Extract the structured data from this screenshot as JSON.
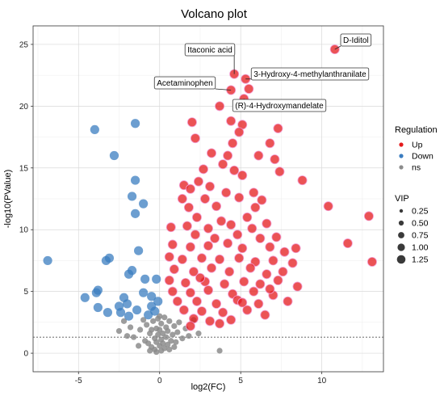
{
  "chart_data": {
    "type": "scatter",
    "title": "Volcano plot",
    "xlabel": "log2(FC)",
    "ylabel": "-log10(PValue)",
    "xlim": [
      -7.8,
      13.8
    ],
    "ylim": [
      -1.5,
      26.5
    ],
    "x_ticks": [
      -5,
      0,
      5,
      10
    ],
    "y_ticks": [
      0,
      5,
      10,
      15,
      20,
      25
    ],
    "grid": true,
    "threshold_line_y": 1.3,
    "legend_placement": "right",
    "colors": {
      "Up": "#e41a1c",
      "Down": "#3b7dc0",
      "ns": "#8c8c8c"
    },
    "regulation_legend": {
      "title": "Regulation",
      "entries": [
        "Up",
        "Down",
        "ns"
      ]
    },
    "vip_legend": {
      "title": "VIP",
      "entries": [
        "0.25",
        "0.50",
        "0.75",
        "1.00",
        "1.25"
      ]
    },
    "series": [
      {
        "name": "Up",
        "points": [
          [
            10.8,
            24.6
          ],
          [
            4.6,
            22.6
          ],
          [
            5.3,
            22.2
          ],
          [
            5.5,
            21.4
          ],
          [
            4.4,
            21.3
          ],
          [
            5.2,
            20.6
          ],
          [
            3.7,
            20.0
          ],
          [
            2.0,
            18.7
          ],
          [
            4.4,
            18.8
          ],
          [
            5.1,
            18.5
          ],
          [
            7.3,
            18.2
          ],
          [
            2.2,
            17.4
          ],
          [
            4.5,
            17.0
          ],
          [
            4.9,
            17.9
          ],
          [
            6.8,
            17.0
          ],
          [
            3.2,
            16.2
          ],
          [
            4.2,
            16.0
          ],
          [
            6.1,
            16.0
          ],
          [
            7.1,
            15.7
          ],
          [
            3.9,
            15.3
          ],
          [
            2.7,
            14.9
          ],
          [
            4.6,
            14.8
          ],
          [
            7.4,
            14.7
          ],
          [
            5.1,
            14.4
          ],
          [
            2.4,
            13.9
          ],
          [
            3.1,
            13.5
          ],
          [
            1.5,
            13.6
          ],
          [
            1.9,
            13.3
          ],
          [
            5.8,
            13.0
          ],
          [
            4.1,
            13.0
          ],
          [
            8.8,
            14.0
          ],
          [
            1.4,
            12.5
          ],
          [
            2.8,
            12.5
          ],
          [
            4.9,
            12.6
          ],
          [
            6.3,
            12.4
          ],
          [
            1.8,
            11.8
          ],
          [
            3.5,
            11.9
          ],
          [
            2.3,
            11.0
          ],
          [
            5.4,
            11.0
          ],
          [
            10.4,
            11.9
          ],
          [
            12.9,
            11.1
          ],
          [
            0.7,
            10.2
          ],
          [
            1.7,
            10.3
          ],
          [
            3.0,
            10.1
          ],
          [
            4.4,
            10.4
          ],
          [
            5.7,
            10.1
          ],
          [
            6.6,
            10.5
          ],
          [
            2.2,
            9.6
          ],
          [
            3.4,
            9.3
          ],
          [
            4.8,
            9.6
          ],
          [
            6.2,
            9.3
          ],
          [
            7.2,
            9.4
          ],
          [
            11.6,
            8.9
          ],
          [
            0.8,
            8.8
          ],
          [
            1.9,
            8.6
          ],
          [
            3.0,
            8.7
          ],
          [
            4.2,
            8.9
          ],
          [
            5.1,
            8.5
          ],
          [
            6.8,
            8.6
          ],
          [
            7.7,
            8.2
          ],
          [
            8.4,
            8.5
          ],
          [
            0.6,
            7.8
          ],
          [
            1.4,
            7.6
          ],
          [
            2.6,
            7.7
          ],
          [
            3.7,
            7.6
          ],
          [
            4.9,
            7.7
          ],
          [
            5.9,
            7.4
          ],
          [
            7.0,
            7.5
          ],
          [
            8.2,
            7.3
          ],
          [
            13.1,
            7.4
          ],
          [
            0.9,
            6.8
          ],
          [
            2.1,
            6.6
          ],
          [
            3.2,
            6.9
          ],
          [
            4.3,
            6.6
          ],
          [
            5.6,
            6.9
          ],
          [
            6.6,
            6.4
          ],
          [
            7.6,
            6.6
          ],
          [
            0.6,
            5.9
          ],
          [
            1.6,
            5.7
          ],
          [
            2.8,
            5.8
          ],
          [
            4.0,
            5.6
          ],
          [
            5.2,
            5.8
          ],
          [
            6.2,
            5.6
          ],
          [
            7.3,
            5.9
          ],
          [
            8.5,
            5.4
          ],
          [
            0.8,
            5.0
          ],
          [
            1.9,
            4.9
          ],
          [
            3.0,
            5.1
          ],
          [
            4.5,
            4.8
          ],
          [
            5.8,
            5.0
          ],
          [
            7.0,
            4.7
          ],
          [
            1.1,
            4.2
          ],
          [
            2.3,
            4.2
          ],
          [
            3.5,
            4.0
          ],
          [
            4.8,
            4.3
          ],
          [
            6.1,
            4.0
          ],
          [
            7.9,
            4.2
          ],
          [
            1.5,
            3.5
          ],
          [
            2.6,
            3.4
          ],
          [
            3.9,
            3.3
          ],
          [
            5.4,
            3.5
          ],
          [
            6.5,
            3.1
          ],
          [
            2.1,
            2.8
          ],
          [
            3.1,
            2.6
          ],
          [
            4.4,
            2.7
          ],
          [
            1.9,
            2.2
          ],
          [
            3.7,
            2.4
          ],
          [
            5.1,
            4.1
          ],
          [
            6.8,
            5.2
          ],
          [
            2.5,
            6.1
          ],
          [
            3.8,
            10.7
          ],
          [
            5.9,
            11.8
          ]
        ]
      },
      {
        "name": "Down",
        "points": [
          [
            -4.0,
            18.1
          ],
          [
            -1.5,
            18.6
          ],
          [
            -2.8,
            16.0
          ],
          [
            -1.5,
            14.0
          ],
          [
            -1.7,
            12.7
          ],
          [
            -1.0,
            12.1
          ],
          [
            -1.5,
            11.3
          ],
          [
            -6.9,
            7.5
          ],
          [
            -3.3,
            7.5
          ],
          [
            -3.1,
            7.7
          ],
          [
            -1.3,
            8.3
          ],
          [
            -1.7,
            6.7
          ],
          [
            -1.9,
            6.4
          ],
          [
            -0.9,
            6.0
          ],
          [
            -0.2,
            6.0
          ],
          [
            -3.8,
            5.1
          ],
          [
            -3.9,
            4.9
          ],
          [
            -2.2,
            4.5
          ],
          [
            -1.0,
            4.9
          ],
          [
            -0.5,
            4.6
          ],
          [
            -4.6,
            4.5
          ],
          [
            -3.8,
            3.7
          ],
          [
            -2.5,
            3.8
          ],
          [
            -2.0,
            4.0
          ],
          [
            -0.1,
            4.2
          ],
          [
            -1.4,
            3.5
          ],
          [
            -2.4,
            3.3
          ],
          [
            -3.2,
            3.3
          ],
          [
            -0.5,
            3.8
          ],
          [
            -0.3,
            3.4
          ],
          [
            -1.9,
            3.0
          ],
          [
            -0.7,
            3.1
          ]
        ]
      },
      {
        "name": "ns",
        "points": [
          [
            -2.5,
            1.8
          ],
          [
            -2.0,
            1.4
          ],
          [
            -1.6,
            1.3
          ],
          [
            -1.2,
            1.9
          ],
          [
            -0.9,
            1.0
          ],
          [
            -0.8,
            2.3
          ],
          [
            -0.7,
            0.8
          ],
          [
            -0.6,
            1.6
          ],
          [
            -0.5,
            0.5
          ],
          [
            -0.4,
            2.6
          ],
          [
            -0.3,
            0.3
          ],
          [
            -0.3,
            1.2
          ],
          [
            -0.2,
            2.0
          ],
          [
            -0.2,
            0.9
          ],
          [
            -0.1,
            1.5
          ],
          [
            -0.1,
            2.8
          ],
          [
            0.0,
            0.6
          ],
          [
            0.0,
            1.9
          ],
          [
            0.1,
            0.2
          ],
          [
            0.1,
            1.1
          ],
          [
            0.1,
            2.4
          ],
          [
            0.2,
            0.8
          ],
          [
            0.2,
            1.6
          ],
          [
            0.3,
            2.9
          ],
          [
            0.3,
            0.4
          ],
          [
            0.4,
            1.3
          ],
          [
            0.4,
            2.1
          ],
          [
            0.5,
            0.7
          ],
          [
            0.5,
            1.8
          ],
          [
            0.6,
            2.6
          ],
          [
            0.7,
            1.0
          ],
          [
            0.8,
            1.5
          ],
          [
            0.9,
            2.2
          ],
          [
            1.0,
            0.9
          ],
          [
            1.1,
            1.7
          ],
          [
            1.2,
            2.5
          ],
          [
            1.4,
            1.2
          ],
          [
            1.6,
            2.0
          ],
          [
            1.8,
            1.4
          ],
          [
            2.1,
            2.7
          ],
          [
            -1.0,
            2.7
          ],
          [
            -1.8,
            2.1
          ],
          [
            -0.6,
            0.2
          ],
          [
            0.6,
            0.3
          ],
          [
            -0.2,
            0.1
          ],
          [
            3.7,
            0.2
          ],
          [
            -2.2,
            2.6
          ],
          [
            0.0,
            3.0
          ],
          [
            2.4,
            1.6
          ],
          [
            -1.3,
            0.6
          ],
          [
            0.9,
            0.5
          ],
          [
            -0.5,
            1.9
          ]
        ]
      }
    ],
    "annotations": [
      {
        "label": "D-Iditol",
        "x": 10.8,
        "y": 24.6
      },
      {
        "label": "Itaconic acid",
        "x": 4.6,
        "y": 22.6
      },
      {
        "label": "3-Hydroxy-4-methylanthranilate",
        "x": 5.3,
        "y": 22.2
      },
      {
        "label": "Acetaminophen",
        "x": 4.4,
        "y": 21.3
      },
      {
        "label": "(R)-4-Hydroxymandelate",
        "x": 5.2,
        "y": 20.6
      }
    ]
  }
}
